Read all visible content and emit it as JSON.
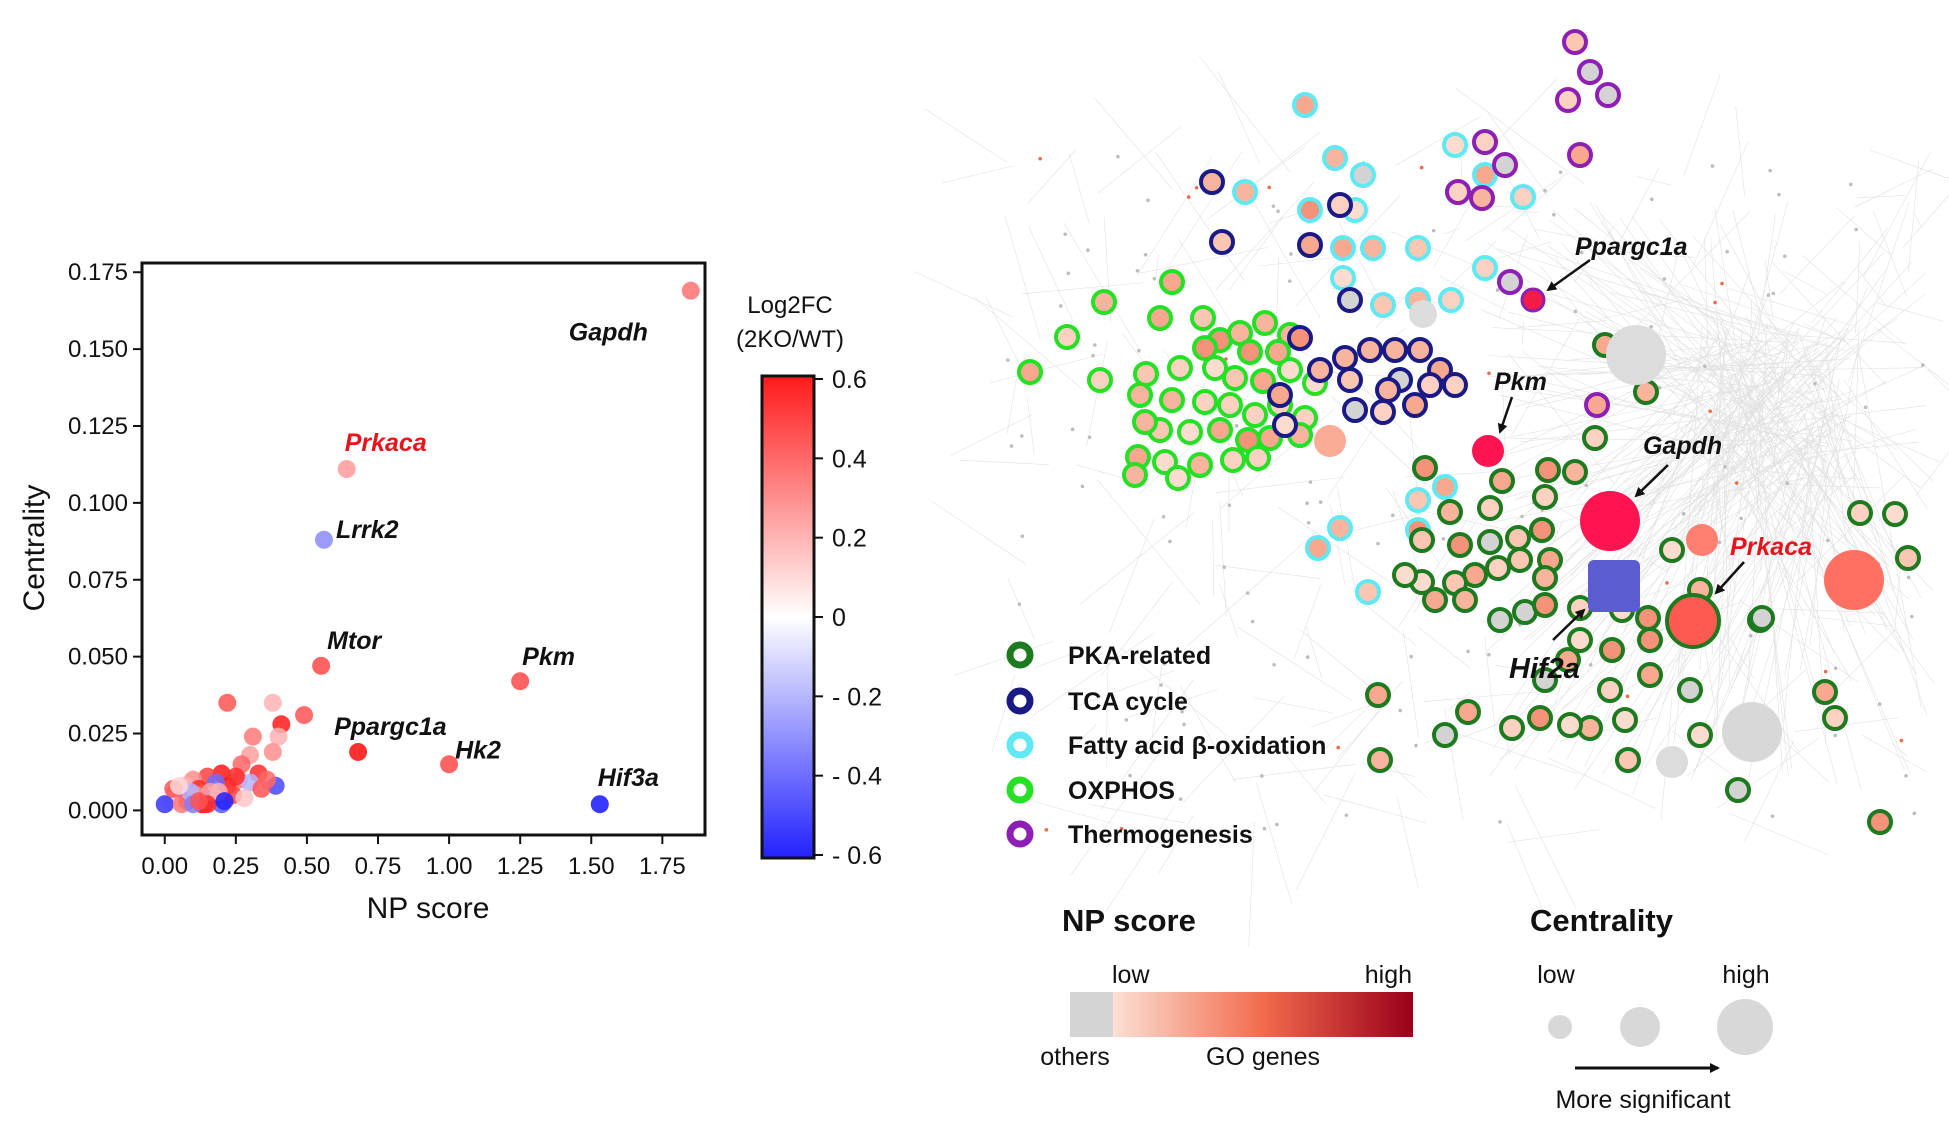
{
  "chart_data": [
    {
      "type": "scatter",
      "xlabel": "NP score",
      "ylabel": "Centrality",
      "xlim": [
        -0.08,
        1.9
      ],
      "ylim": [
        -0.008,
        0.178
      ],
      "xticks": [
        "0.00",
        "0.25",
        "0.50",
        "0.75",
        "1.00",
        "1.25",
        "1.50",
        "1.75"
      ],
      "yticks": [
        "0.000",
        "0.025",
        "0.050",
        "0.075",
        "0.100",
        "0.125",
        "0.150",
        "0.175"
      ],
      "colorbar": {
        "title_line1": "Log2FC",
        "title_line2": "(2KO/WT)",
        "range": [
          -0.6,
          0.6
        ],
        "ticks": [
          "0.6",
          "0.4",
          "0.2",
          "0",
          "- 0.2",
          "- 0.4",
          "- 0.6"
        ],
        "low_color": "#2222ff",
        "mid_color": "#ffffff",
        "high_color": "#ff1a1a"
      },
      "labeled_points": [
        {
          "gene": "Gapdh",
          "x": 1.85,
          "y": 0.169,
          "log2fc": 0.35,
          "label_color": "#111111"
        },
        {
          "gene": "Prkaca",
          "x": 0.64,
          "y": 0.111,
          "log2fc": 0.25,
          "label_color": "#e8141b"
        },
        {
          "gene": "Lrrk2",
          "x": 0.56,
          "y": 0.088,
          "log2fc": -0.3,
          "label_color": "#111111"
        },
        {
          "gene": "Mtor",
          "x": 0.55,
          "y": 0.047,
          "log2fc": 0.45,
          "label_color": "#111111"
        },
        {
          "gene": "Pkm",
          "x": 1.25,
          "y": 0.042,
          "log2fc": 0.45,
          "label_color": "#111111"
        },
        {
          "gene": "Ppargc1a",
          "x": 0.68,
          "y": 0.019,
          "log2fc": 0.6,
          "label_color": "#111111"
        },
        {
          "gene": "Hk2",
          "x": 1.0,
          "y": 0.015,
          "log2fc": 0.45,
          "label_color": "#111111"
        },
        {
          "gene": "Hif3a",
          "x": 1.53,
          "y": 0.002,
          "log2fc": -0.6,
          "label_color": "#111111"
        }
      ],
      "points": [
        {
          "x": 0.22,
          "y": 0.035,
          "c": 0.45
        },
        {
          "x": 0.38,
          "y": 0.035,
          "c": 0.2
        },
        {
          "x": 0.41,
          "y": 0.028,
          "c": 0.6
        },
        {
          "x": 0.49,
          "y": 0.031,
          "c": 0.45
        },
        {
          "x": 0.31,
          "y": 0.024,
          "c": 0.35
        },
        {
          "x": 0.4,
          "y": 0.024,
          "c": 0.2
        },
        {
          "x": 0.3,
          "y": 0.018,
          "c": 0.25
        },
        {
          "x": 0.38,
          "y": 0.019,
          "c": 0.3
        },
        {
          "x": 0.27,
          "y": 0.015,
          "c": 0.4
        },
        {
          "x": 0.33,
          "y": 0.012,
          "c": 0.55
        },
        {
          "x": 0.2,
          "y": 0.012,
          "c": 0.6
        },
        {
          "x": 0.26,
          "y": 0.01,
          "c": 0.35
        },
        {
          "x": 0.15,
          "y": 0.011,
          "c": 0.5
        },
        {
          "x": 0.1,
          "y": 0.01,
          "c": 0.3
        },
        {
          "x": 0.07,
          "y": 0.008,
          "c": 0.2
        },
        {
          "x": 0.04,
          "y": 0.006,
          "c": 0.4
        },
        {
          "x": 0.22,
          "y": 0.008,
          "c": 0.6
        },
        {
          "x": 0.3,
          "y": 0.009,
          "c": -0.2
        },
        {
          "x": 0.39,
          "y": 0.008,
          "c": -0.5
        },
        {
          "x": 0.34,
          "y": 0.007,
          "c": 0.45
        },
        {
          "x": 0.18,
          "y": 0.009,
          "c": -0.4
        },
        {
          "x": 0.12,
          "y": 0.007,
          "c": 0.55
        },
        {
          "x": 0.05,
          "y": 0.004,
          "c": -0.3
        },
        {
          "x": 0.02,
          "y": 0.003,
          "c": 0.1
        },
        {
          "x": 0.0,
          "y": 0.002,
          "c": -0.55
        },
        {
          "x": 0.08,
          "y": 0.003,
          "c": 0.6
        },
        {
          "x": 0.14,
          "y": 0.002,
          "c": 0.6
        },
        {
          "x": 0.17,
          "y": 0.004,
          "c": -0.5
        },
        {
          "x": 0.2,
          "y": 0.002,
          "c": -0.45
        },
        {
          "x": 0.11,
          "y": 0.005,
          "c": 0.3
        },
        {
          "x": 0.24,
          "y": 0.005,
          "c": 0.5
        },
        {
          "x": 0.28,
          "y": 0.004,
          "c": 0.15
        },
        {
          "x": 0.13,
          "y": 0.002,
          "c": 0.6
        },
        {
          "x": 0.06,
          "y": 0.002,
          "c": 0.35
        },
        {
          "x": 0.16,
          "y": 0.006,
          "c": 0.25
        },
        {
          "x": 0.09,
          "y": 0.006,
          "c": -0.2
        },
        {
          "x": 0.03,
          "y": 0.007,
          "c": 0.45
        },
        {
          "x": 0.25,
          "y": 0.011,
          "c": 0.55
        },
        {
          "x": 0.36,
          "y": 0.01,
          "c": 0.4
        },
        {
          "x": 0.19,
          "y": 0.006,
          "c": 0.2
        },
        {
          "x": 0.1,
          "y": 0.002,
          "c": -0.35
        },
        {
          "x": 0.15,
          "y": 0.002,
          "c": 0.55
        },
        {
          "x": 0.21,
          "y": 0.003,
          "c": -0.6
        },
        {
          "x": 0.12,
          "y": 0.003,
          "c": 0.45
        },
        {
          "x": 0.05,
          "y": 0.008,
          "c": 0.1
        }
      ]
    },
    {
      "type": "network",
      "gene_labels": [
        "Ppargc1a",
        "Pkm",
        "Gapdh",
        "Prkaca",
        "Hif2a"
      ],
      "categories": [
        {
          "name": "PKA-related",
          "ring_color": "#1e7a1e"
        },
        {
          "name": "TCA cycle",
          "ring_color": "#1a1a86"
        },
        {
          "name": "Fatty acid β-oxidation",
          "ring_color": "#5fe9f2"
        },
        {
          "name": "OXPHOS",
          "ring_color": "#25e025"
        },
        {
          "name": "Thermogenesis",
          "ring_color": "#8e1fb5"
        }
      ],
      "np_score_legend": {
        "title": "NP score",
        "low": "low",
        "high": "high",
        "others": "others",
        "go_genes": "GO genes",
        "others_color": "#d4d4d4",
        "low_color": "#fbe0d4",
        "mid_color": "#f26b4d",
        "high_color": "#99001a"
      },
      "centrality_legend": {
        "title": "Centrality",
        "low": "low",
        "high": "high",
        "caption": "More significant"
      }
    }
  ]
}
